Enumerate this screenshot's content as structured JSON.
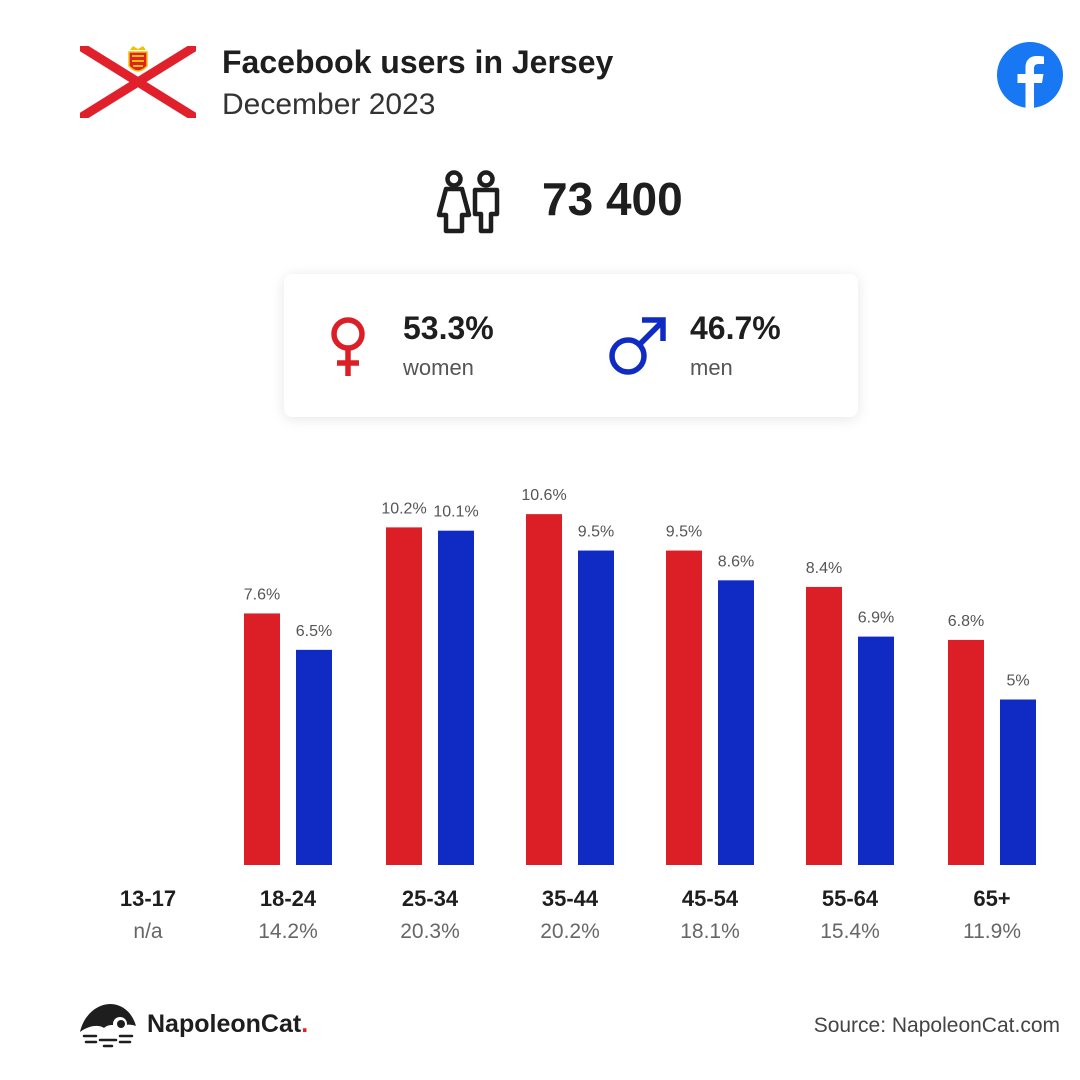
{
  "header": {
    "title": "Facebook users in Jersey",
    "subtitle": "December 2023"
  },
  "summary": {
    "total_users": "73 400"
  },
  "gender": {
    "women_pct": "53.3%",
    "women_label": "women",
    "men_pct": "46.7%",
    "men_label": "men"
  },
  "colors": {
    "women": "#dc1f26",
    "men": "#0f2bc4",
    "facebook": "#1877f2"
  },
  "chart_data": {
    "type": "bar",
    "categories": [
      "13-17",
      "18-24",
      "25-34",
      "35-44",
      "45-54",
      "55-64",
      "65+"
    ],
    "category_totals": [
      "n/a",
      "14.2%",
      "20.3%",
      "20.2%",
      "18.1%",
      "15.4%",
      "11.9%"
    ],
    "series": [
      {
        "name": "women",
        "values": [
          null,
          7.6,
          10.2,
          10.6,
          9.5,
          8.4,
          6.8
        ],
        "labels": [
          "",
          "7.6%",
          "10.2%",
          "10.6%",
          "9.5%",
          "8.4%",
          "6.8%"
        ]
      },
      {
        "name": "men",
        "values": [
          null,
          6.5,
          10.1,
          9.5,
          8.6,
          6.9,
          5
        ],
        "labels": [
          "",
          "6.5%",
          "10.1%",
          "9.5%",
          "8.6%",
          "6.9%",
          "5%"
        ]
      }
    ],
    "ylim": [
      0,
      10.6
    ],
    "grid": false,
    "legend": "none"
  },
  "footer": {
    "brand_name": "NapoleonCat",
    "brand_dot": ".",
    "source": "Source: NapoleonCat.com"
  }
}
